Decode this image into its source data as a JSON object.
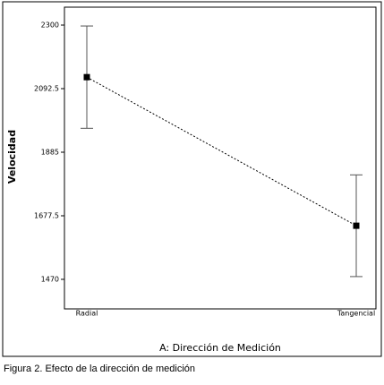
{
  "chart_data": {
    "type": "line",
    "title": null,
    "x_label": "A: Dirección de Medición",
    "y_label": "Velocidad",
    "caption": "Figura 2. Efecto de la dirección de medición",
    "categories": [
      "Radial",
      "Tangencial"
    ],
    "values": [
      2130,
      1645
    ],
    "errors": [
      167,
      166
    ],
    "color": "#000000",
    "ylim": [
      1373.5,
      2358.5
    ],
    "yticks": [
      2300,
      2092.5,
      1885,
      1677.5,
      1470
    ]
  }
}
